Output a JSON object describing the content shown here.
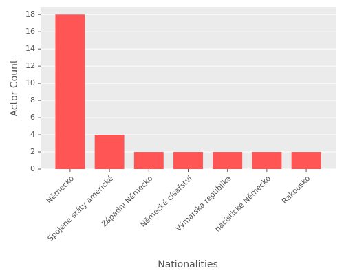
{
  "chart_data": {
    "type": "bar",
    "categories": [
      "Německo",
      "Spojené státy americké",
      "Západní Německo",
      "Německé císařství",
      "Výmarská republika",
      "nacistické Německo",
      "Rakousko"
    ],
    "values": [
      18,
      4,
      2,
      2,
      2,
      2,
      2
    ],
    "color": "#ff5555",
    "ylim": [
      0,
      18.9
    ],
    "yticks": [
      0,
      2,
      4,
      6,
      8,
      10,
      12,
      14,
      16,
      18
    ],
    "grid": true,
    "xlabel": "Nationalities",
    "ylabel": "Actor Count"
  }
}
